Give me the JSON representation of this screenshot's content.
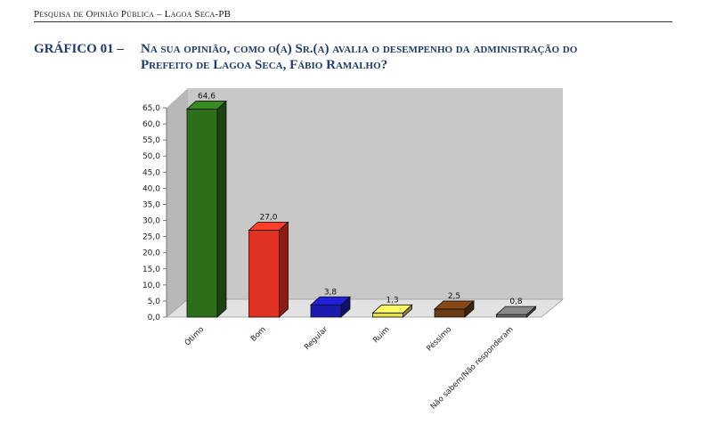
{
  "header": {
    "running_title": "Pesquisa de Opinião Pública – Lagoa Seca-PB"
  },
  "figure": {
    "label": "GRÁFICO 01 –",
    "title_line1": "Na sua opinião, como o(a) Sr.(a) avalia o desempenho da administração do",
    "title_line2": "Prefeito de Lagoa Seca, Fábio Ramalho?"
  },
  "chart_data": {
    "type": "bar",
    "categories": [
      "Ótimo",
      "Bom",
      "Regular",
      "Ruim",
      "Péssimo",
      "Não sabem/Não responderam"
    ],
    "values": [
      64.6,
      27.0,
      3.8,
      1.3,
      2.5,
      0.8
    ],
    "value_labels": [
      "64,6",
      "27,0",
      "3,8",
      "1,3",
      "2,5",
      "0,8"
    ],
    "colors": [
      "#2d6e1a",
      "#e03222",
      "#1a1ab0",
      "#e6e050",
      "#6b3a12",
      "#6e6e6e"
    ],
    "ylim": [
      0,
      65
    ],
    "yticks": [
      "0,0",
      "5,0",
      "10,0",
      "15,0",
      "20,0",
      "25,0",
      "30,0",
      "35,0",
      "40,0",
      "45,0",
      "50,0",
      "55,0",
      "60,0",
      "65,0"
    ],
    "grid": false,
    "legend": "none",
    "style": "3d-column"
  }
}
